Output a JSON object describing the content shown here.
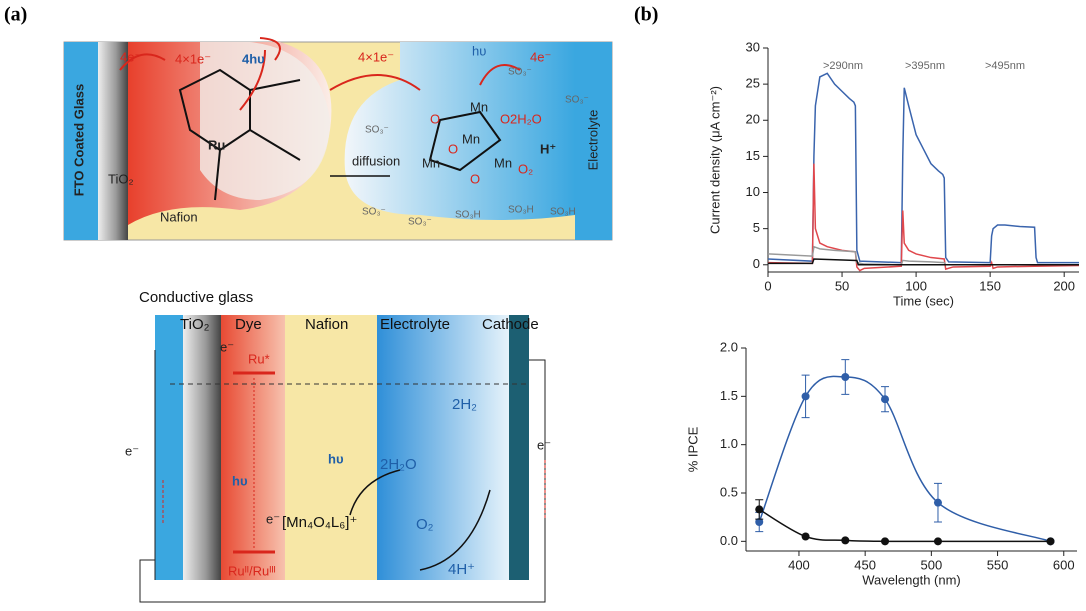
{
  "panel_labels": {
    "a": "(a)",
    "b": "(b)"
  },
  "top_diagram": {
    "fto": "FTO Coated Glass",
    "tio2": "TiO₂",
    "nafion": "Nafion",
    "electrolyte": "Electrolyte",
    "diffusion": "diffusion",
    "e4_left": "4e⁻",
    "e4x1_a": "4×1e⁻",
    "hv4": "4hυ",
    "e4x1_b": "4×1e⁻",
    "hv": "hυ",
    "e4_right": "4e⁻",
    "ru": "Ru",
    "mn": [
      "Mn",
      "Mn",
      "Mn",
      "Mn"
    ],
    "o": [
      "O",
      "O",
      "O",
      "O"
    ],
    "water": "2H₂O",
    "o2": "O₂",
    "hplus": "H⁺",
    "so3": [
      "SO₃⁻",
      "SO₃⁻",
      "SO₃⁻",
      "SO₃⁻",
      "SO₃⁻",
      "SO₃H",
      "SO₃H",
      "SO₃H"
    ]
  },
  "bottom_diagram": {
    "conductive": "Conductive glass",
    "headers": [
      "TiO₂",
      "Dye",
      "Nafion",
      "Electrolyte",
      "Cathode"
    ],
    "e_top": "e⁻",
    "ru_star": "Ru*",
    "ru_pair": "Ruᴵᴵ/Ruᴵᴵᴵ",
    "hv_dye": "hυ",
    "hv_nafion": "hυ",
    "e_mn": "e⁻",
    "mn_complex": "[Mn₄O₄L₆]⁺",
    "water": "2H₂O",
    "h2": "2H₂",
    "o2": "O₂",
    "protons": "4H⁺",
    "e_left": "e⁻",
    "e_right": "e⁻"
  },
  "chart_data": [
    {
      "type": "line",
      "xlabel": "Time (sec)",
      "ylabel": "Current density (μA cm⁻²)",
      "annotations": [
        ">290nm",
        ">395nm",
        ">495nm"
      ],
      "xlim": [
        0,
        210
      ],
      "xticks": [
        0,
        50,
        100,
        150,
        200
      ],
      "ylim": [
        -1,
        30
      ],
      "yticks": [
        0,
        5,
        10,
        15,
        20,
        25,
        30
      ],
      "series": [
        {
          "color": "#3a64ad",
          "x": [
            0,
            30,
            31,
            32,
            35,
            40,
            45,
            50,
            55,
            58,
            59,
            60,
            62,
            90,
            91,
            92,
            95,
            100,
            105,
            110,
            115,
            118,
            119,
            120,
            122,
            150,
            151,
            152,
            155,
            160,
            170,
            180,
            181,
            182,
            210
          ],
          "values": [
            0.8,
            0.5,
            15,
            22,
            26,
            26.5,
            25,
            24,
            23,
            22.5,
            22,
            2,
            0.5,
            0.3,
            15,
            24.5,
            22,
            18,
            16,
            14,
            13,
            12.5,
            12,
            1,
            0.4,
            0.3,
            4,
            5,
            5.5,
            5.5,
            5.3,
            5.2,
            1,
            0.3,
            0.3
          ]
        },
        {
          "color": "#e0474c",
          "x": [
            0,
            30,
            31,
            32,
            35,
            40,
            50,
            59,
            60,
            62,
            65,
            90,
            91,
            92,
            95,
            100,
            110,
            119,
            120,
            125,
            150,
            151,
            152,
            155,
            180,
            210
          ],
          "values": [
            0.3,
            0.2,
            14,
            5,
            3,
            2.5,
            2,
            1.8,
            -0.3,
            -0.8,
            -0.5,
            -0.2,
            7.5,
            3,
            2,
            1.5,
            1,
            0.8,
            -0.6,
            -0.3,
            -0.2,
            0.3,
            -0.5,
            -0.3,
            -0.2,
            -0.1
          ]
        },
        {
          "color": "#9a9a9a",
          "x": [
            0,
            30,
            31,
            35,
            45,
            59,
            60,
            65,
            90,
            91,
            95,
            110,
            119,
            120,
            150,
            210
          ],
          "values": [
            1.5,
            1.2,
            2.5,
            2.2,
            2,
            1.8,
            0.3,
            0.1,
            0,
            0.6,
            0.5,
            0.4,
            0.3,
            0,
            0,
            0
          ]
        },
        {
          "color": "#111111",
          "x": [
            0,
            30,
            31,
            60,
            61,
            210
          ],
          "values": [
            0.2,
            0.2,
            0.8,
            0.6,
            0,
            0
          ]
        }
      ]
    },
    {
      "type": "scatter",
      "xlabel": "Wavelength (nm)",
      "ylabel": "% IPCE",
      "smooth_line": true,
      "xlim": [
        360,
        610
      ],
      "xticks": [
        400,
        450,
        500,
        550,
        600
      ],
      "ylim": [
        -0.1,
        2.0
      ],
      "yticks": [
        {
          "value": 0,
          "label": "0.0"
        },
        {
          "value": 0.5,
          "label": "0.5"
        },
        {
          "value": 1,
          "label": "1.0"
        },
        {
          "value": 1.5,
          "label": "1.5"
        },
        {
          "value": 2,
          "label": "2.0"
        }
      ],
      "series": [
        {
          "color": "#2f5ea8",
          "x": [
            370,
            405,
            435,
            465,
            505,
            590
          ],
          "values": [
            0.2,
            1.5,
            1.7,
            1.47,
            0.4,
            0
          ],
          "errors": [
            0.1,
            0.22,
            0.18,
            0.13,
            0.2,
            0
          ]
        },
        {
          "color": "#111111",
          "x": [
            370,
            405,
            435,
            465,
            505,
            590
          ],
          "values": [
            0.33,
            0.05,
            0.01,
            0,
            0,
            0
          ],
          "errors": [
            0.1,
            0,
            0,
            0,
            0,
            0
          ]
        }
      ]
    }
  ]
}
